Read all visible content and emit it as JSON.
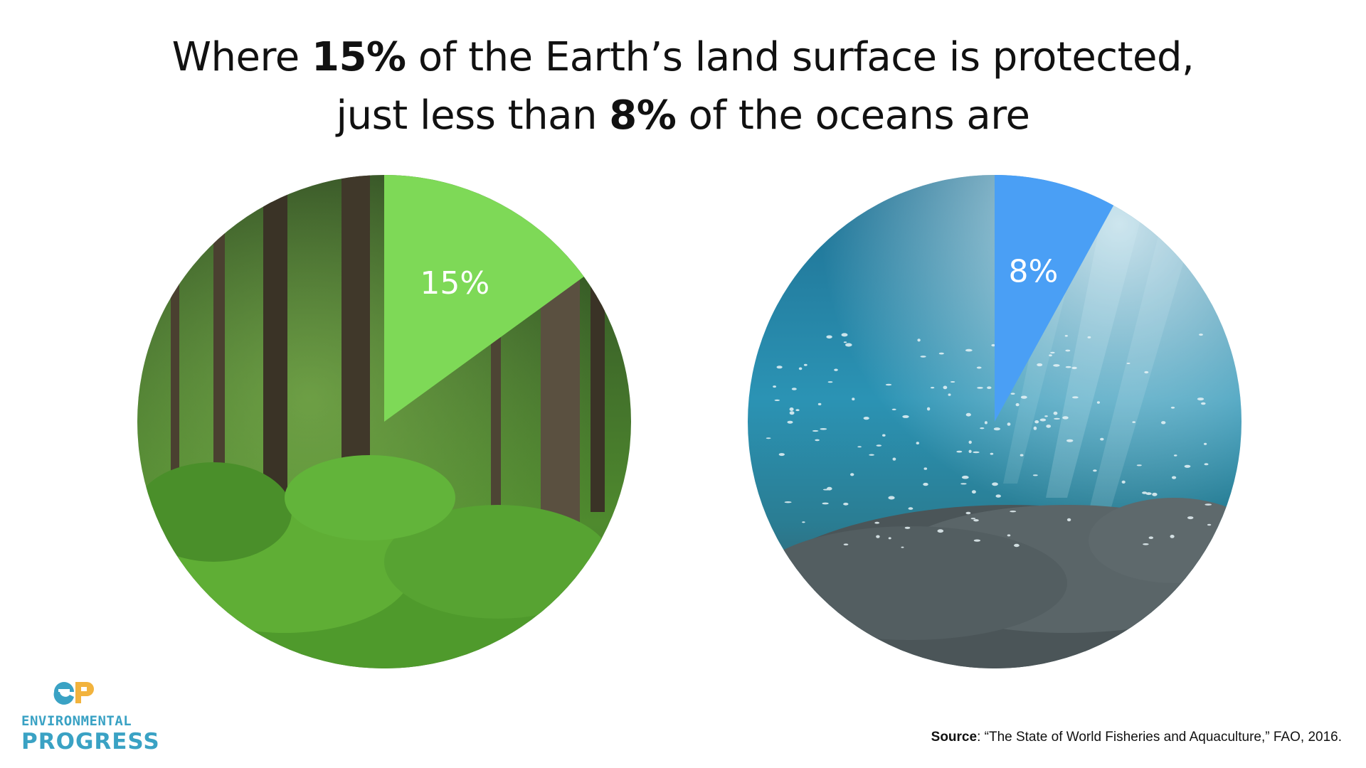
{
  "title": {
    "line1_pre": "Where ",
    "line1_bold": "15%",
    "line1_post": " of the Earth’s land surface is protected,",
    "line2_pre": "just less than ",
    "line2_bold": "8%",
    "line2_post": " of the oceans are"
  },
  "chart_data": [
    {
      "type": "pie",
      "title": "",
      "background_image": "forest-photo",
      "slices": [
        {
          "name": "",
          "value": 15,
          "label": "15%",
          "color": "#7ed957"
        },
        {
          "name": "",
          "value": 85,
          "label": "",
          "color": "forest-photo"
        }
      ],
      "start_angle_deg": 0,
      "direction": "clockwise"
    },
    {
      "type": "pie",
      "title": "",
      "background_image": "ocean-photo",
      "slices": [
        {
          "name": "",
          "value": 8,
          "label": "8%",
          "color": "#4a9ff5"
        },
        {
          "name": "",
          "value": 92,
          "label": "",
          "color": "ocean-photo"
        }
      ],
      "start_angle_deg": 0,
      "direction": "clockwise"
    }
  ],
  "logo": {
    "mark": "ep-logo-icon",
    "line1": "ENVIRONMENTAL",
    "line2": "PROGRESS",
    "color": "#3aa2c4"
  },
  "source": {
    "label": "Source",
    "text": ": “The State of World Fisheries and Aquaculture,” FAO, 2016."
  }
}
